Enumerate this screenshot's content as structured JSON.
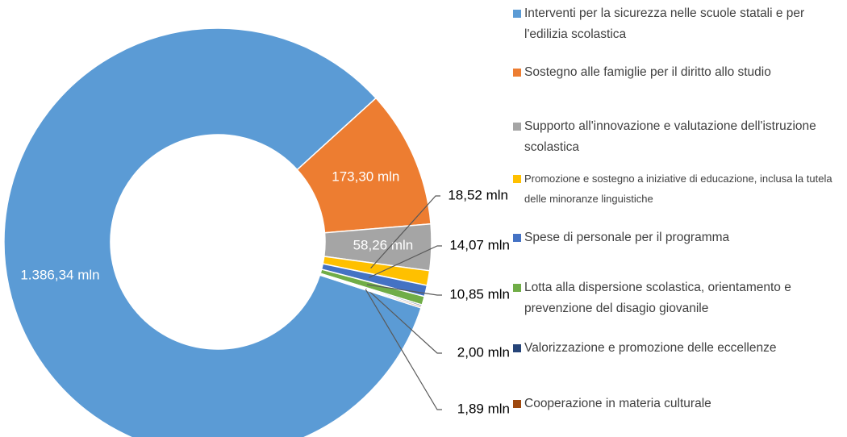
{
  "chart_data": {
    "type": "donut",
    "categories": [
      "Interventi per la sicurezza nelle scuole statali e per l'edilizia scolastica",
      "Sostegno alle famiglie per il diritto allo studio",
      "Supporto all'innovazione e valutazione dell'istruzione scolastica",
      "Promozione e sostegno a iniziative di educazione, inclusa la tutela delle minoranze linguistiche",
      "Spese di personale per il programma",
      "Lotta alla dispersione scolastica, orientamento e prevenzione del disagio giovanile",
      "Valorizzazione e promozione delle eccellenze",
      "Cooperazione in materia culturale"
    ],
    "values": [
      1386.34,
      173.3,
      58.26,
      18.52,
      14.07,
      10.85,
      2.0,
      1.89
    ],
    "value_labels": [
      "1.386,34 mln",
      "173,30 mln",
      "58,26 mln",
      "18,52 mln",
      "14,07 mln",
      "10,85 mln",
      "2,00 mln",
      "1,89 mln"
    ],
    "colors": [
      "#5b9bd5",
      "#ed7d31",
      "#a5a5a5",
      "#ffc000",
      "#4472c4",
      "#70ad47",
      "#264478",
      "#9e480e"
    ],
    "legend": "right"
  }
}
